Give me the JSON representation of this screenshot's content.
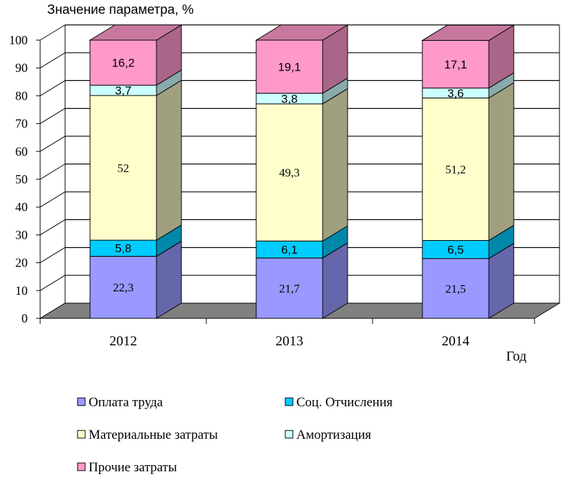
{
  "chart_data": {
    "type": "bar",
    "stacked": true,
    "three_d": true,
    "ylabel": "Значение параметра, %",
    "xlabel": "Год",
    "ylim": [
      0,
      100
    ],
    "yticks": [
      "0",
      "10",
      "20",
      "30",
      "40",
      "50",
      "60",
      "70",
      "80",
      "90",
      "100"
    ],
    "grid": true,
    "legend_position": "bottom",
    "categories": [
      "2012",
      "2013",
      "2014"
    ],
    "series": [
      {
        "name": "Оплата труда",
        "values": [
          22.3,
          21.7,
          21.5
        ],
        "labels": [
          "22,3",
          "21,7",
          "21,5"
        ],
        "color": "#9999FF",
        "side_color": "#6666AA",
        "label_font": "serif"
      },
      {
        "name": "Соц. Отчисления",
        "values": [
          5.8,
          6.1,
          6.5
        ],
        "labels": [
          "5,8",
          "6,1",
          "6,5"
        ],
        "color": "#00CCFF",
        "side_color": "#0088AA",
        "label_font": "sans"
      },
      {
        "name": "Материальные  затраты",
        "values": [
          52,
          49.3,
          51.2
        ],
        "labels": [
          "52",
          "49,3",
          "51,2"
        ],
        "color": "#FFFFCC",
        "side_color": "#A0A080",
        "label_font": "serif"
      },
      {
        "name": "Амортизация",
        "values": [
          3.7,
          3.8,
          3.6
        ],
        "labels": [
          "3,7",
          "3,8",
          "3,6"
        ],
        "color": "#CCFFFF",
        "side_color": "#88AAAA",
        "label_font": "sans"
      },
      {
        "name": "Прочие затраты",
        "values": [
          16.2,
          19.1,
          17.1
        ],
        "labels": [
          "16,2",
          "19,1",
          "17,1"
        ],
        "color": "#FF99CC",
        "side_color": "#AA6688",
        "top_color": "#C8789E",
        "label_font": "sans"
      }
    ]
  }
}
